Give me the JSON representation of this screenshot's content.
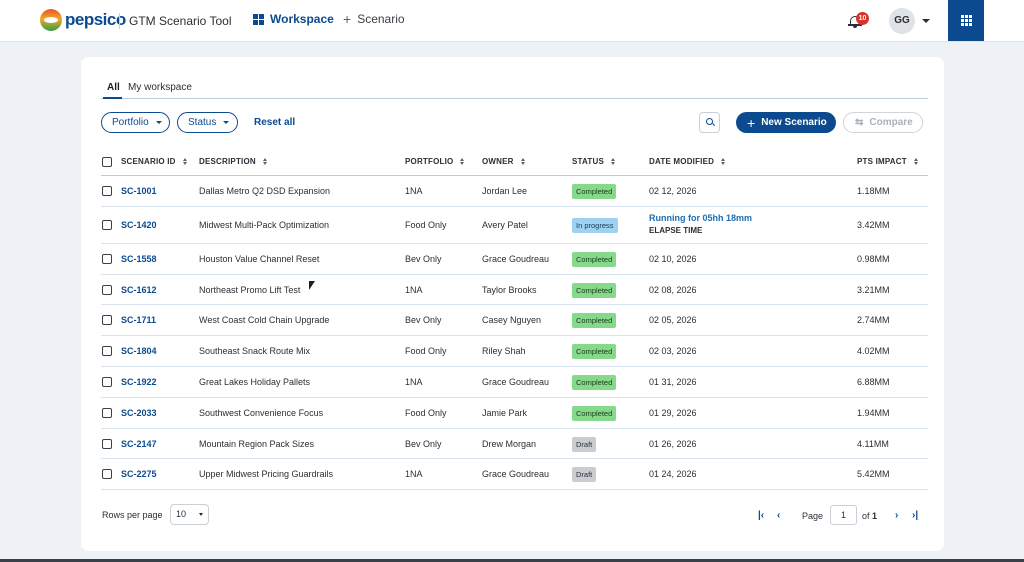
{
  "header": {
    "logo_text": "pepsico",
    "app_title": "GTM Scenario Tool",
    "nav": [
      {
        "label": "Workspace",
        "icon": "grid-icon",
        "active": true
      },
      {
        "label": "Scenario",
        "icon": "plus-icon",
        "active": false
      }
    ],
    "notification_count": "10",
    "user_initials": "GG",
    "colors": {
      "brand": "#0b4a8f",
      "badge": "#d6342c"
    }
  },
  "tabs": [
    {
      "label": "All",
      "active": true
    },
    {
      "label": "My workspace",
      "active": false
    }
  ],
  "filters": {
    "portfolio_label": "Portfolio",
    "status_label": "Status",
    "reset_label": "Reset all"
  },
  "actions": {
    "new_scenario_label": "New Scenario",
    "compare_label": "Compare"
  },
  "table": {
    "columns": [
      "SCENARIO ID",
      "DESCRIPTION",
      "PORTFOLIO",
      "OWNER",
      "STATUS",
      "DATE MODIFIED",
      "PTS IMPACT"
    ],
    "rows": [
      {
        "id": "SC-1001",
        "description": "Dallas Metro Q2 DSD Expansion",
        "portfolio": "1NA",
        "owner": "Jordan Lee",
        "status": "Completed",
        "date": "02 12, 2026",
        "impact": "1.18MM"
      },
      {
        "id": "SC-1420",
        "description": "Midwest Multi-Pack Optimization",
        "portfolio": "Food Only",
        "owner": "Avery Patel",
        "status": "In progress",
        "date_running": "Running for 05hh 18mm",
        "date_elapse": "ELAPSE TIME",
        "impact": "3.42MM"
      },
      {
        "id": "SC-1558",
        "description": "Houston Value Channel Reset",
        "portfolio": "Bev Only",
        "owner": "Grace Goudreau",
        "status": "Completed",
        "date": "02 10, 2026",
        "impact": "0.98MM"
      },
      {
        "id": "SC-1612",
        "description": "Northeast Promo Lift Test",
        "portfolio": "1NA",
        "owner": "Taylor Brooks",
        "status": "Completed",
        "date": "02 08, 2026",
        "impact": "3.21MM"
      },
      {
        "id": "SC-1711",
        "description": "West Coast Cold Chain Upgrade",
        "portfolio": "Bev Only",
        "owner": "Casey Nguyen",
        "status": "Completed",
        "date": "02 05, 2026",
        "impact": "2.74MM"
      },
      {
        "id": "SC-1804",
        "description": "Southeast Snack Route Mix",
        "portfolio": "Food Only",
        "owner": "Riley Shah",
        "status": "Completed",
        "date": "02 03, 2026",
        "impact": "4.02MM"
      },
      {
        "id": "SC-1922",
        "description": "Great Lakes Holiday Pallets",
        "portfolio": "1NA",
        "owner": "Grace Goudreau",
        "status": "Completed",
        "date": "01 31, 2026",
        "impact": "6.88MM"
      },
      {
        "id": "SC-2033",
        "description": "Southwest Convenience Focus",
        "portfolio": "Food Only",
        "owner": "Jamie Park",
        "status": "Completed",
        "date": "01 29, 2026",
        "impact": "1.94MM"
      },
      {
        "id": "SC-2147",
        "description": "Mountain Region Pack Sizes",
        "portfolio": "Bev Only",
        "owner": "Drew Morgan",
        "status": "Draft",
        "date": "01 26, 2026",
        "impact": "4.11MM"
      },
      {
        "id": "SC-2275",
        "description": "Upper Midwest Pricing Guardrails",
        "portfolio": "1NA",
        "owner": "Grace Goudreau",
        "status": "Draft",
        "date": "01 24, 2026",
        "impact": "5.42MM"
      }
    ]
  },
  "pagination": {
    "rows_per_page_label": "Rows per page",
    "rows_per_page_value": "10",
    "page_label": "Page",
    "page_value": "1",
    "of_label": "of",
    "total_pages": "1"
  }
}
